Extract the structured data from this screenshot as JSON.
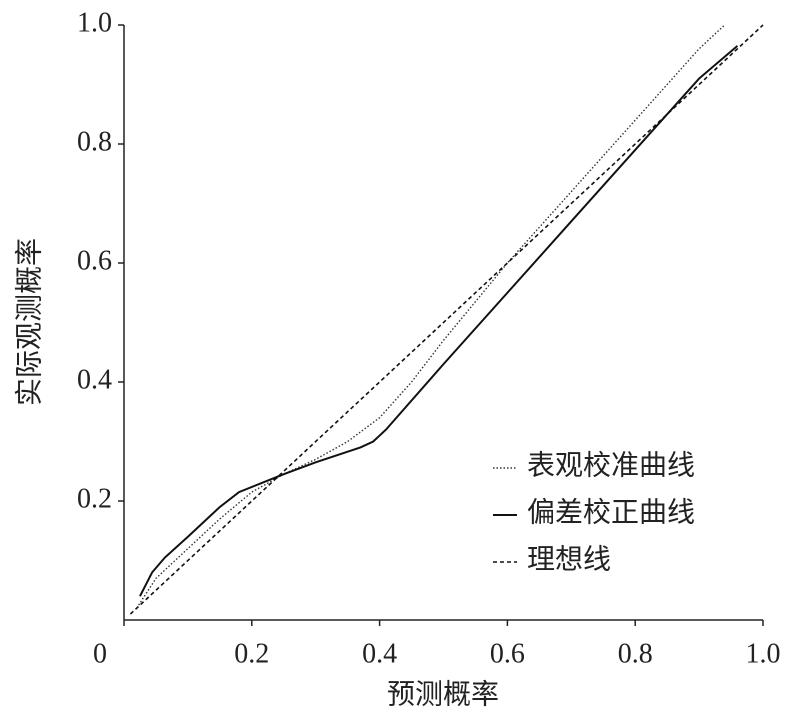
{
  "chart_data": {
    "type": "line",
    "x_label": "预测概率",
    "y_label": "实际观测概率",
    "xlim": [
      0,
      1
    ],
    "ylim": [
      0,
      1
    ],
    "xticks": [
      0,
      0.2,
      0.4,
      0.6,
      0.8,
      {
        "value": 1,
        "label": "1.0"
      }
    ],
    "yticks": [
      0.2,
      0.4,
      0.6,
      0.8,
      {
        "value": 1,
        "label": "1.0"
      }
    ],
    "legend": "lower right",
    "series": [
      {
        "name": "表观校准曲线",
        "color": "#333333",
        "linestyle": "dotted",
        "x": [
          0.02,
          0.05,
          0.1,
          0.15,
          0.2,
          0.25,
          0.3,
          0.35,
          0.4,
          0.45,
          0.5,
          0.6,
          0.7,
          0.8,
          0.9,
          0.94
        ],
        "values": [
          0.02,
          0.07,
          0.12,
          0.17,
          0.215,
          0.245,
          0.27,
          0.3,
          0.34,
          0.4,
          0.47,
          0.6,
          0.72,
          0.84,
          0.96,
          1.0
        ]
      },
      {
        "name": "偏差校正曲线",
        "color": "#111111",
        "linestyle": "solid",
        "x": [
          0.025,
          0.044,
          0.064,
          0.1,
          0.15,
          0.18,
          0.25,
          0.3,
          0.37,
          0.39,
          0.41,
          0.5,
          0.6,
          0.7,
          0.8,
          0.9,
          0.96
        ],
        "values": [
          0.04,
          0.08,
          0.105,
          0.14,
          0.19,
          0.215,
          0.245,
          0.265,
          0.29,
          0.3,
          0.32,
          0.43,
          0.55,
          0.67,
          0.79,
          0.91,
          0.965
        ]
      },
      {
        "name": "理想线",
        "color": "#111111",
        "linestyle": "dashed",
        "x": [
          0.01,
          1.0
        ],
        "values": [
          0.01,
          1.0
        ]
      }
    ]
  }
}
